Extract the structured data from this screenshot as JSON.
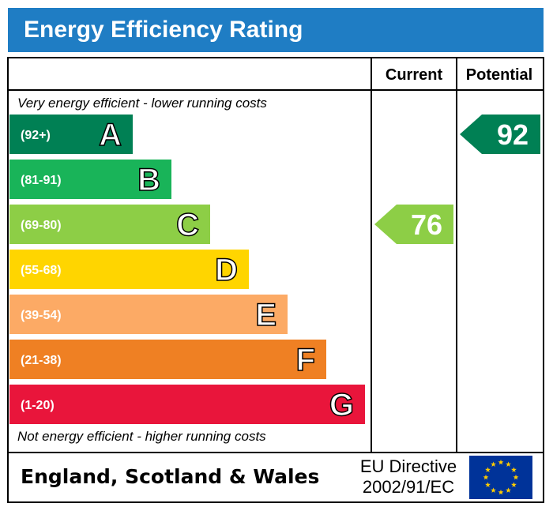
{
  "colors": {
    "header": "#1f7dc4",
    "border": "#000000",
    "eu_flag": "#003399",
    "eu_star": "#ffcc00"
  },
  "header": {
    "title": "Energy Efficiency Rating"
  },
  "columns": {
    "current": "Current",
    "potential": "Potential"
  },
  "notes": {
    "top": "Very energy efficient - lower running costs",
    "bottom": "Not energy efficient - higher running costs"
  },
  "footer": {
    "region": "England, Scotland & Wales",
    "directive_line1": "EU Directive",
    "directive_line2": "2002/91/EC",
    "flag_icon": "eu-flag-icon"
  },
  "chart_data": {
    "type": "bar",
    "categories": [
      "A",
      "B",
      "C",
      "D",
      "E",
      "F",
      "G"
    ],
    "ranges": [
      "(92+)",
      "(81-91)",
      "(69-80)",
      "(55-68)",
      "(39-54)",
      "(21-38)",
      "(1-20)"
    ],
    "colors": [
      "#008054",
      "#19b459",
      "#8dce46",
      "#ffd500",
      "#fcaa65",
      "#ef8023",
      "#e9153b"
    ],
    "current": {
      "value": 76,
      "band": "C",
      "color": "#8dce46"
    },
    "potential": {
      "value": 92,
      "band": "A",
      "color": "#008054"
    }
  }
}
